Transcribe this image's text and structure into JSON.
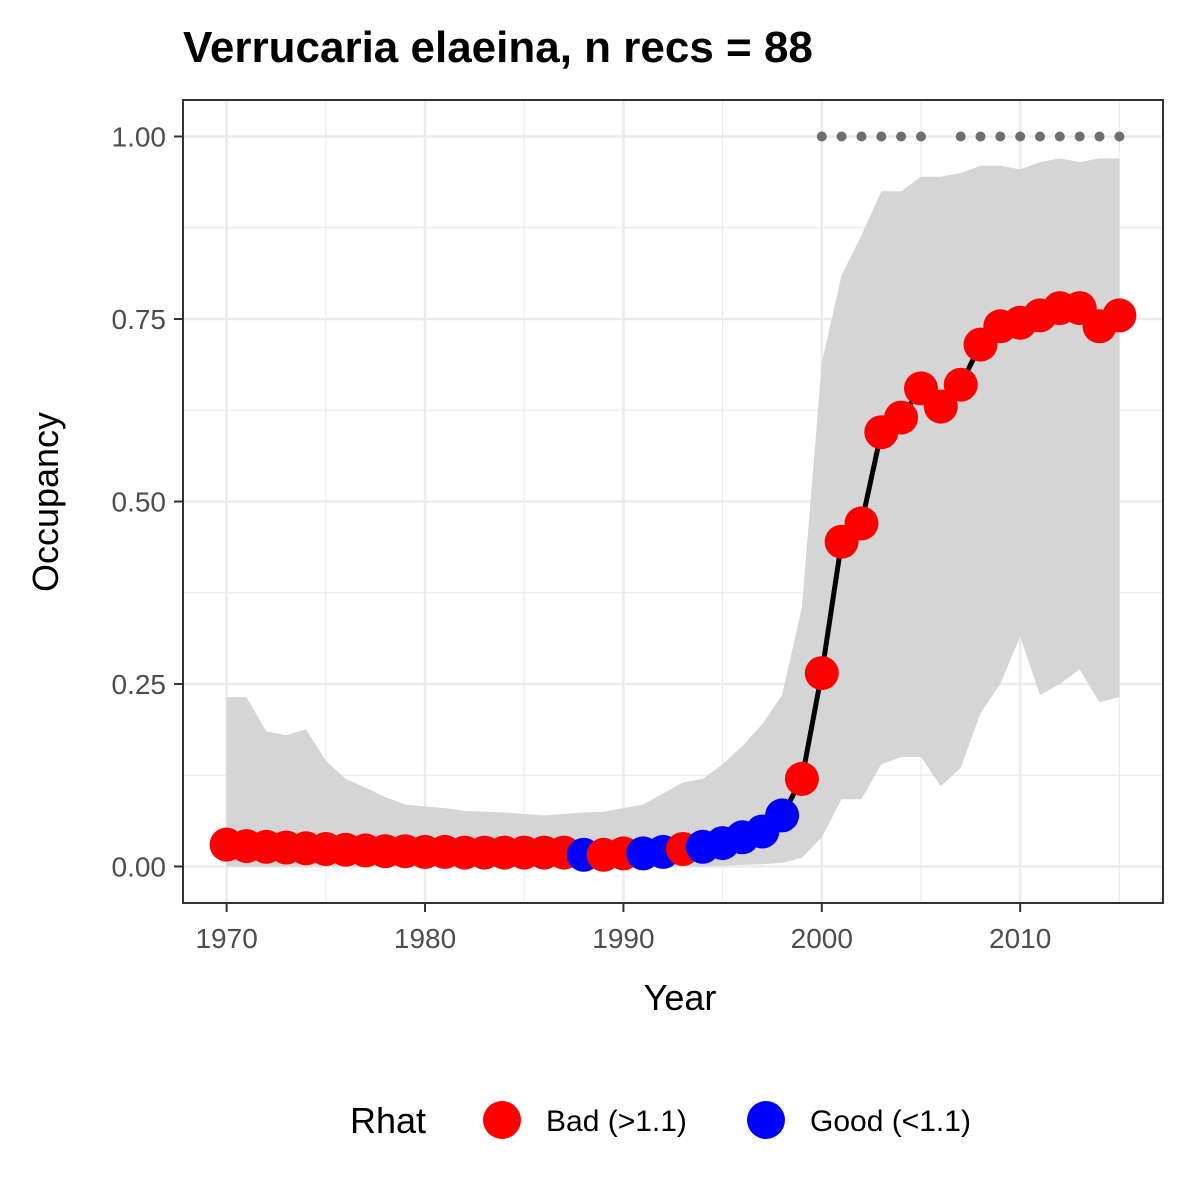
{
  "chart_data": {
    "type": "line",
    "title": "Verrucaria elaeina, n recs = 88",
    "xlabel": "Year",
    "ylabel": "Occupancy",
    "xlim": [
      1967.8,
      2017.2
    ],
    "ylim": [
      -0.05,
      1.05
    ],
    "x_ticks": [
      1970,
      1980,
      1990,
      2000,
      2010
    ],
    "x_tick_labels": [
      "1970",
      "1980",
      "1990",
      "2000",
      "2010"
    ],
    "y_ticks": [
      0,
      0.25,
      0.5,
      0.75,
      1.0
    ],
    "y_tick_labels": [
      "0.00",
      "0.25",
      "0.50",
      "0.75",
      "1.00"
    ],
    "grid": true,
    "years": [
      1970,
      1971,
      1972,
      1973,
      1974,
      1975,
      1976,
      1977,
      1978,
      1979,
      1980,
      1981,
      1982,
      1983,
      1984,
      1985,
      1986,
      1987,
      1988,
      1989,
      1990,
      1991,
      1992,
      1993,
      1994,
      1995,
      1996,
      1997,
      1998,
      1999,
      2000,
      2001,
      2002,
      2003,
      2004,
      2005,
      2006,
      2007,
      2008,
      2009,
      2010,
      2011,
      2012,
      2013,
      2014,
      2015
    ],
    "occupancy": [
      0.03,
      0.028,
      0.027,
      0.026,
      0.025,
      0.024,
      0.023,
      0.022,
      0.021,
      0.021,
      0.02,
      0.02,
      0.019,
      0.019,
      0.019,
      0.019,
      0.019,
      0.019,
      0.016,
      0.016,
      0.018,
      0.018,
      0.02,
      0.024,
      0.027,
      0.032,
      0.04,
      0.048,
      0.07,
      0.12,
      0.265,
      0.445,
      0.47,
      0.595,
      0.615,
      0.655,
      0.63,
      0.66,
      0.715,
      0.74,
      0.745,
      0.755,
      0.765,
      0.765,
      0.74,
      0.755
    ],
    "rhat_status": [
      "Bad",
      "Bad",
      "Bad",
      "Bad",
      "Bad",
      "Bad",
      "Bad",
      "Bad",
      "Bad",
      "Bad",
      "Bad",
      "Bad",
      "Bad",
      "Bad",
      "Bad",
      "Bad",
      "Bad",
      "Bad",
      "Good",
      "Bad",
      "Bad",
      "Good",
      "Good",
      "Bad",
      "Good",
      "Good",
      "Good",
      "Good",
      "Good",
      "Bad",
      "Bad",
      "Bad",
      "Bad",
      "Bad",
      "Bad",
      "Bad",
      "Bad",
      "Bad",
      "Bad",
      "Bad",
      "Bad",
      "Bad",
      "Bad",
      "Bad",
      "Bad",
      "Bad"
    ],
    "ci_lower": [
      0.0,
      0.0,
      0.0,
      0.0,
      0.0,
      0.0,
      0.0,
      0.0,
      0.0,
      0.0,
      0.0,
      0.0,
      0.0,
      0.0,
      0.0,
      0.0,
      0.0,
      0.0,
      0.0,
      0.0,
      0.0,
      0.0,
      0.0,
      0.0,
      0.0,
      0.001,
      0.002,
      0.003,
      0.005,
      0.012,
      0.04,
      0.092,
      0.092,
      0.14,
      0.15,
      0.15,
      0.11,
      0.135,
      0.21,
      0.25,
      0.315,
      0.235,
      0.25,
      0.27,
      0.225,
      0.232
    ],
    "ci_upper": [
      0.232,
      0.232,
      0.185,
      0.18,
      0.188,
      0.145,
      0.12,
      0.108,
      0.095,
      0.085,
      0.082,
      0.08,
      0.076,
      0.075,
      0.074,
      0.072,
      0.07,
      0.072,
      0.074,
      0.075,
      0.08,
      0.085,
      0.1,
      0.115,
      0.12,
      0.14,
      0.165,
      0.195,
      0.235,
      0.355,
      0.69,
      0.81,
      0.865,
      0.925,
      0.925,
      0.945,
      0.945,
      0.95,
      0.96,
      0.96,
      0.955,
      0.965,
      0.97,
      0.965,
      0.97,
      0.97
    ],
    "detection_years": [
      2000,
      2001,
      2002,
      2003,
      2004,
      2005,
      2007,
      2008,
      2009,
      2010,
      2011,
      2012,
      2013,
      2014,
      2015
    ],
    "detection_y": 1.0,
    "series": [
      {
        "name": "Bad (>1.1)",
        "color": "#ff0000"
      },
      {
        "name": "Good (<1.1)",
        "color": "#0000ff"
      }
    ],
    "legend": {
      "title": "Rhat",
      "position": "bottom"
    }
  },
  "colors": {
    "bad": "#ff0000",
    "good": "#0000ff",
    "line": "#000000",
    "ribbon": "#d3d3d3",
    "detection": "#6e6e6e",
    "grid": "#ebebeb",
    "panel_border": "#333333"
  }
}
